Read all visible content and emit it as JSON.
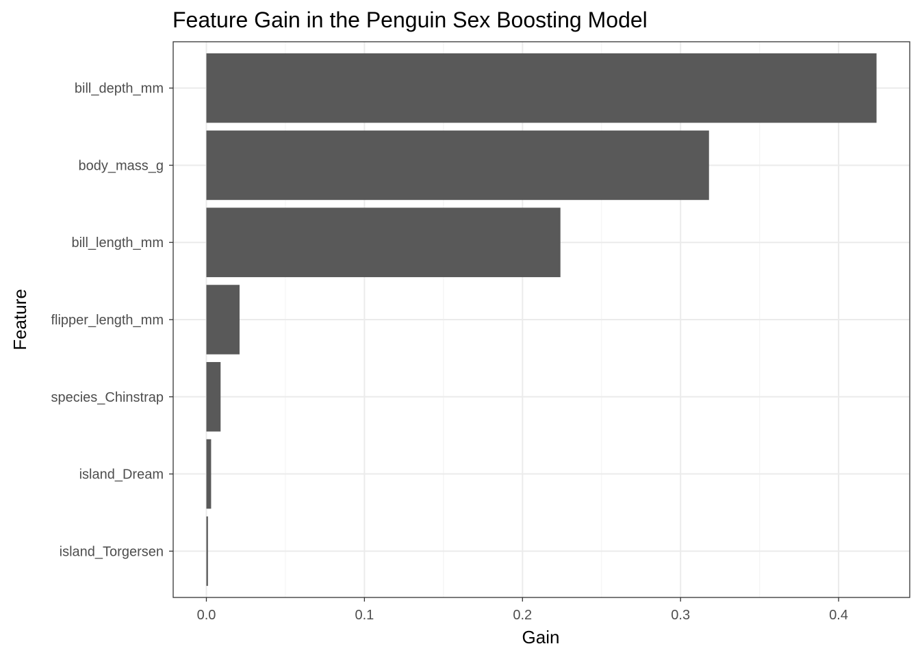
{
  "chart_data": {
    "type": "bar",
    "orientation": "horizontal",
    "title": "Feature Gain in the Penguin Sex Boosting Model",
    "xlabel": "Gain",
    "ylabel": "Feature",
    "categories": [
      "bill_depth_mm",
      "body_mass_g",
      "bill_length_mm",
      "flipper_length_mm",
      "species_Chinstrap",
      "island_Dream",
      "island_Torgersen"
    ],
    "values": [
      0.424,
      0.318,
      0.224,
      0.021,
      0.009,
      0.003,
      0.001
    ],
    "xlim": [
      -0.021,
      0.445
    ],
    "xticks": [
      0.0,
      0.1,
      0.2,
      0.3,
      0.4
    ],
    "xtick_labels": [
      "0.0",
      "0.1",
      "0.2",
      "0.3",
      "0.4"
    ],
    "grid": true,
    "colors": {
      "bar": "#595959",
      "grid_major": "#ebebeb",
      "grid_minor": "#f4f4f4",
      "panel_border": "#333333",
      "tick_label": "#4d4d4d"
    }
  }
}
